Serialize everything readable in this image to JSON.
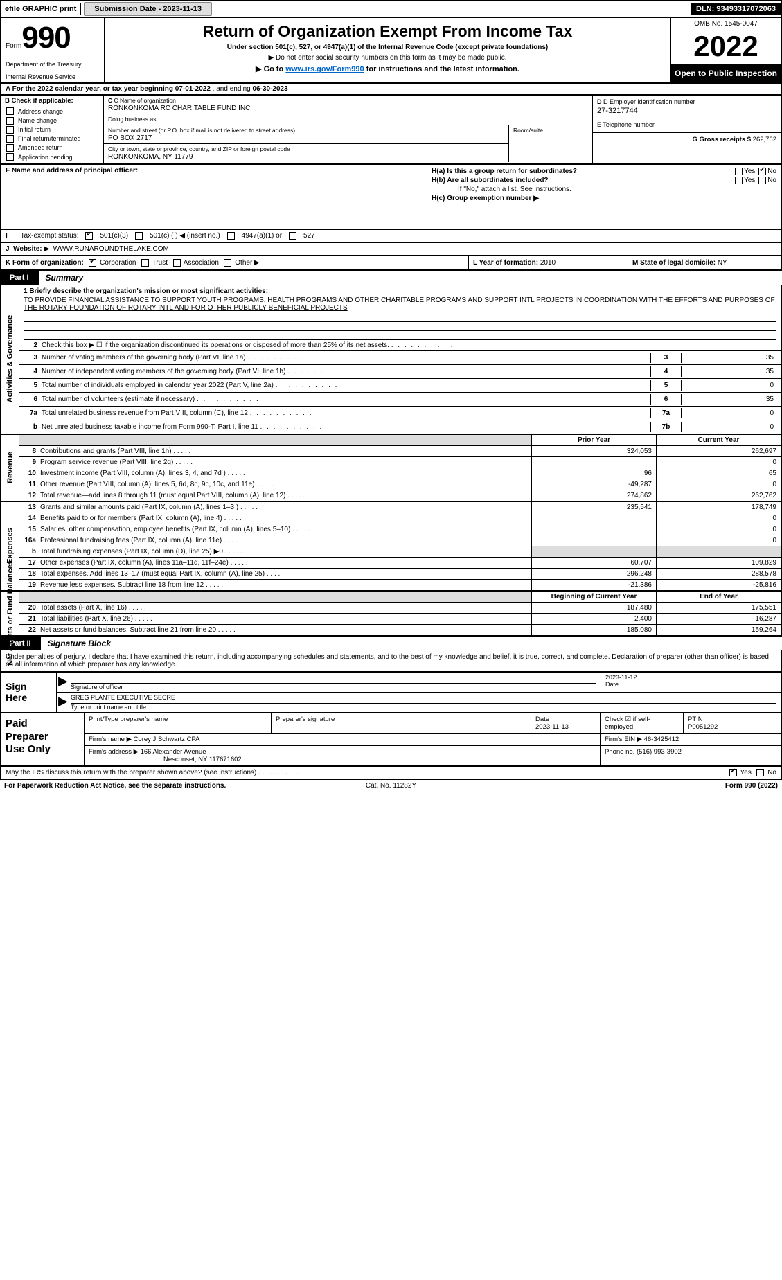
{
  "topbar": {
    "label_l": "efile GRAPHIC print",
    "label_sub": "Submission Date - 2023-11-13",
    "dln": "DLN: 93493317072063"
  },
  "header": {
    "form_word": "Form",
    "form_number": "990",
    "title": "Return of Organization Exempt From Income Tax",
    "sub1": "Under section 501(c), 527, or 4947(a)(1) of the Internal Revenue Code (except private foundations)",
    "sub2": "▶ Do not enter social security numbers on this form as it may be made public.",
    "sub3_pre": "▶ Go to ",
    "sub3_link": "www.irs.gov/Form990",
    "sub3_post": " for instructions and the latest information.",
    "dept1": "Department of the Treasury",
    "dept2": "Internal Revenue Service",
    "omb": "OMB No. 1545-0047",
    "year": "2022",
    "inspect": "Open to Public Inspection"
  },
  "rowA": {
    "text_pre": "A For the 2022 calendar year, or tax year beginning ",
    "begin": "07-01-2022",
    "mid": "     , and ending ",
    "end": "06-30-2023"
  },
  "B": {
    "hdr": "B Check if applicable:",
    "items": [
      "Address change",
      "Name change",
      "Initial return",
      "Final return/terminated",
      "Amended return",
      "Application pending"
    ]
  },
  "C": {
    "lbl_name": "C Name of organization",
    "name": "RONKONKOMA RC CHARITABLE FUND INC",
    "lbl_dba": "Doing business as",
    "dba": "",
    "lbl_street": "Number and street (or P.O. box if mail is not delivered to street address)",
    "street": "PO BOX 2717",
    "lbl_room": "Room/suite",
    "lbl_city": "City or town, state or province, country, and ZIP or foreign postal code",
    "city": "RONKONKOMA, NY  11779"
  },
  "D": {
    "lbl": "D Employer identification number",
    "val": "27-3217744",
    "lbl_e": "E Telephone number",
    "val_e": "",
    "lbl_g": "G Gross receipts $",
    "val_g": "262,762"
  },
  "F": {
    "lbl": "F  Name and address of principal officer:"
  },
  "H": {
    "a_lbl": "H(a)  Is this a group return for subordinates?",
    "yes": "Yes",
    "no": "No",
    "b_lbl": "H(b)  Are all subordinates included?",
    "b_note": "If \"No,\" attach a list. See instructions.",
    "c_lbl": "H(c)  Group exemption number ▶"
  },
  "I": {
    "lbl": "Tax-exempt status:",
    "opts": [
      "501(c)(3)",
      "501(c) (   ) ◀ (insert no.)",
      "4947(a)(1) or",
      "527"
    ]
  },
  "J": {
    "lbl": "Website: ▶",
    "val": "WWW.RUNAROUNDTHELAKE.COM"
  },
  "K": {
    "lbl": "K Form of organization:",
    "opts": [
      "Corporation",
      "Trust",
      "Association",
      "Other ▶"
    ]
  },
  "L": {
    "lbl": "L Year of formation:",
    "val": "2010"
  },
  "M": {
    "lbl": "M State of legal domicile:",
    "val": "NY"
  },
  "part1": {
    "num": "Part I",
    "title": "Summary"
  },
  "briefly": {
    "lbl": "1  Briefly describe the organization's mission or most significant activities:",
    "text": "TO PROVIDE FINANCIAL ASSISTANCE TO SUPPORT YOUTH PROGRAMS, HEALTH PROGRAMS AND OTHER CHARITABLE PROGRAMS AND SUPPORT INTL PROJECTS IN COORDINATION WITH THE EFFORTS AND PURPOSES OF THE ROTARY FOUNDATION OF ROTARY INTL AND FOR OTHER PUBLICLY BENEFICIAL PROJECTS"
  },
  "govlines": [
    {
      "n": "2",
      "t": "Check this box ▶ ☐  if the organization discontinued its operations or disposed of more than 25% of its net assets.",
      "nc": "",
      "v": ""
    },
    {
      "n": "3",
      "t": "Number of voting members of the governing body (Part VI, line 1a)",
      "nc": "3",
      "v": "35"
    },
    {
      "n": "4",
      "t": "Number of independent voting members of the governing body (Part VI, line 1b)",
      "nc": "4",
      "v": "35"
    },
    {
      "n": "5",
      "t": "Total number of individuals employed in calendar year 2022 (Part V, line 2a)",
      "nc": "5",
      "v": "0"
    },
    {
      "n": "6",
      "t": "Total number of volunteers (estimate if necessary)",
      "nc": "6",
      "v": "35"
    },
    {
      "n": "7a",
      "t": "Total unrelated business revenue from Part VIII, column (C), line 12",
      "nc": "7a",
      "v": "0"
    },
    {
      "n": "b",
      "t": "Net unrelated business taxable income from Form 990-T, Part I, line 11",
      "nc": "7b",
      "v": "0"
    }
  ],
  "sidetabs": {
    "gov": "Activities & Governance",
    "rev": "Revenue",
    "exp": "Expenses",
    "net": "Net Assets or Fund Balances"
  },
  "revhdr": {
    "c1": "Prior Year",
    "c2": "Current Year"
  },
  "revlines": [
    {
      "n": "8",
      "t": "Contributions and grants (Part VIII, line 1h)",
      "c1": "324,053",
      "c2": "262,697"
    },
    {
      "n": "9",
      "t": "Program service revenue (Part VIII, line 2g)",
      "c1": "",
      "c2": "0"
    },
    {
      "n": "10",
      "t": "Investment income (Part VIII, column (A), lines 3, 4, and 7d )",
      "c1": "96",
      "c2": "65"
    },
    {
      "n": "11",
      "t": "Other revenue (Part VIII, column (A), lines 5, 6d, 8c, 9c, 10c, and 11e)",
      "c1": "-49,287",
      "c2": "0"
    },
    {
      "n": "12",
      "t": "Total revenue—add lines 8 through 11 (must equal Part VIII, column (A), line 12)",
      "c1": "274,862",
      "c2": "262,762"
    }
  ],
  "explines": [
    {
      "n": "13",
      "t": "Grants and similar amounts paid (Part IX, column (A), lines 1–3 )",
      "c1": "235,541",
      "c2": "178,749"
    },
    {
      "n": "14",
      "t": "Benefits paid to or for members (Part IX, column (A), line 4)",
      "c1": "",
      "c2": "0"
    },
    {
      "n": "15",
      "t": "Salaries, other compensation, employee benefits (Part IX, column (A), lines 5–10)",
      "c1": "",
      "c2": "0"
    },
    {
      "n": "16a",
      "t": "Professional fundraising fees (Part IX, column (A), line 11e)",
      "c1": "",
      "c2": "0"
    },
    {
      "n": "b",
      "t": "Total fundraising expenses (Part IX, column (D), line 25) ▶0",
      "c1": "__gray__",
      "c2": "__gray__"
    },
    {
      "n": "17",
      "t": "Other expenses (Part IX, column (A), lines 11a–11d, 11f–24e)",
      "c1": "60,707",
      "c2": "109,829"
    },
    {
      "n": "18",
      "t": "Total expenses. Add lines 13–17 (must equal Part IX, column (A), line 25)",
      "c1": "296,248",
      "c2": "288,578"
    },
    {
      "n": "19",
      "t": "Revenue less expenses. Subtract line 18 from line 12",
      "c1": "-21,386",
      "c2": "-25,816"
    }
  ],
  "nethdr": {
    "c1": "Beginning of Current Year",
    "c2": "End of Year"
  },
  "netlines": [
    {
      "n": "20",
      "t": "Total assets (Part X, line 16)",
      "c1": "187,480",
      "c2": "175,551"
    },
    {
      "n": "21",
      "t": "Total liabilities (Part X, line 26)",
      "c1": "2,400",
      "c2": "16,287"
    },
    {
      "n": "22",
      "t": "Net assets or fund balances. Subtract line 21 from line 20",
      "c1": "185,080",
      "c2": "159,264"
    }
  ],
  "part2": {
    "num": "Part II",
    "title": "Signature Block"
  },
  "sigintro": "Under penalties of perjury, I declare that I have examined this return, including accompanying schedules and statements, and to the best of my knowledge and belief, it is true, correct, and complete. Declaration of preparer (other than officer) is based on all information of which preparer has any knowledge.",
  "sign": {
    "here1": "Sign",
    "here2": "Here",
    "sig_lbl": "Signature of officer",
    "date_lbl": "Date",
    "date_val": "2023-11-12",
    "name_val": "GREG PLANTE  EXECUTIVE SECRE",
    "name_lbl": "Type or print name and title"
  },
  "prep": {
    "left1": "Paid",
    "left2": "Preparer",
    "left3": "Use Only",
    "h1": "Print/Type preparer's name",
    "h2": "Preparer's signature",
    "h3": "Date",
    "h3v": "2023-11-13",
    "h4": "Check ☑ if self-employed",
    "h5": "PTIN",
    "h5v": "P0051292",
    "firm_lbl": "Firm's name    ▶",
    "firm": "Corey J Schwartz CPA",
    "ein_lbl": "Firm's EIN ▶",
    "ein": "46-3425412",
    "addr_lbl": "Firm's address ▶",
    "addr1": "166 Alexander Avenue",
    "addr2": "Nesconset, NY  117671602",
    "phone_lbl": "Phone no.",
    "phone": "(516) 993-3902"
  },
  "mayirs": {
    "q": "May the IRS discuss this return with the preparer shown above? (see instructions)",
    "yes": "Yes",
    "no": "No"
  },
  "footer": {
    "l": "For Paperwork Reduction Act Notice, see the separate instructions.",
    "m": "Cat. No. 11282Y",
    "r": "Form 990 (2022)"
  }
}
